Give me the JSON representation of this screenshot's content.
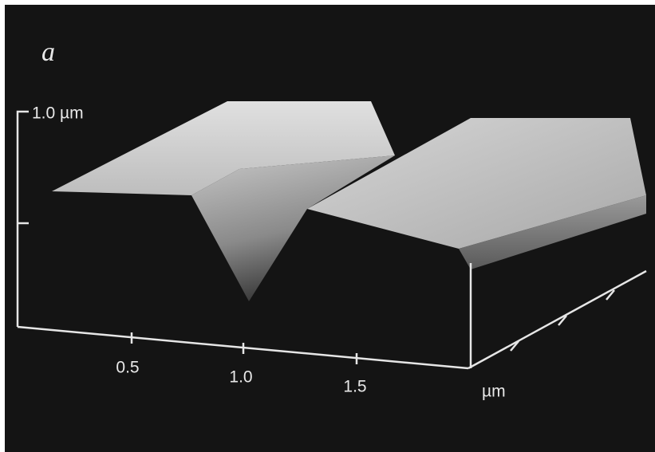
{
  "panel_label": "a",
  "z_scale_label": "1.0 µm",
  "x_tick_labels": [
    "0.5",
    "1.0",
    "1.5"
  ],
  "x_unit": "µm"
}
